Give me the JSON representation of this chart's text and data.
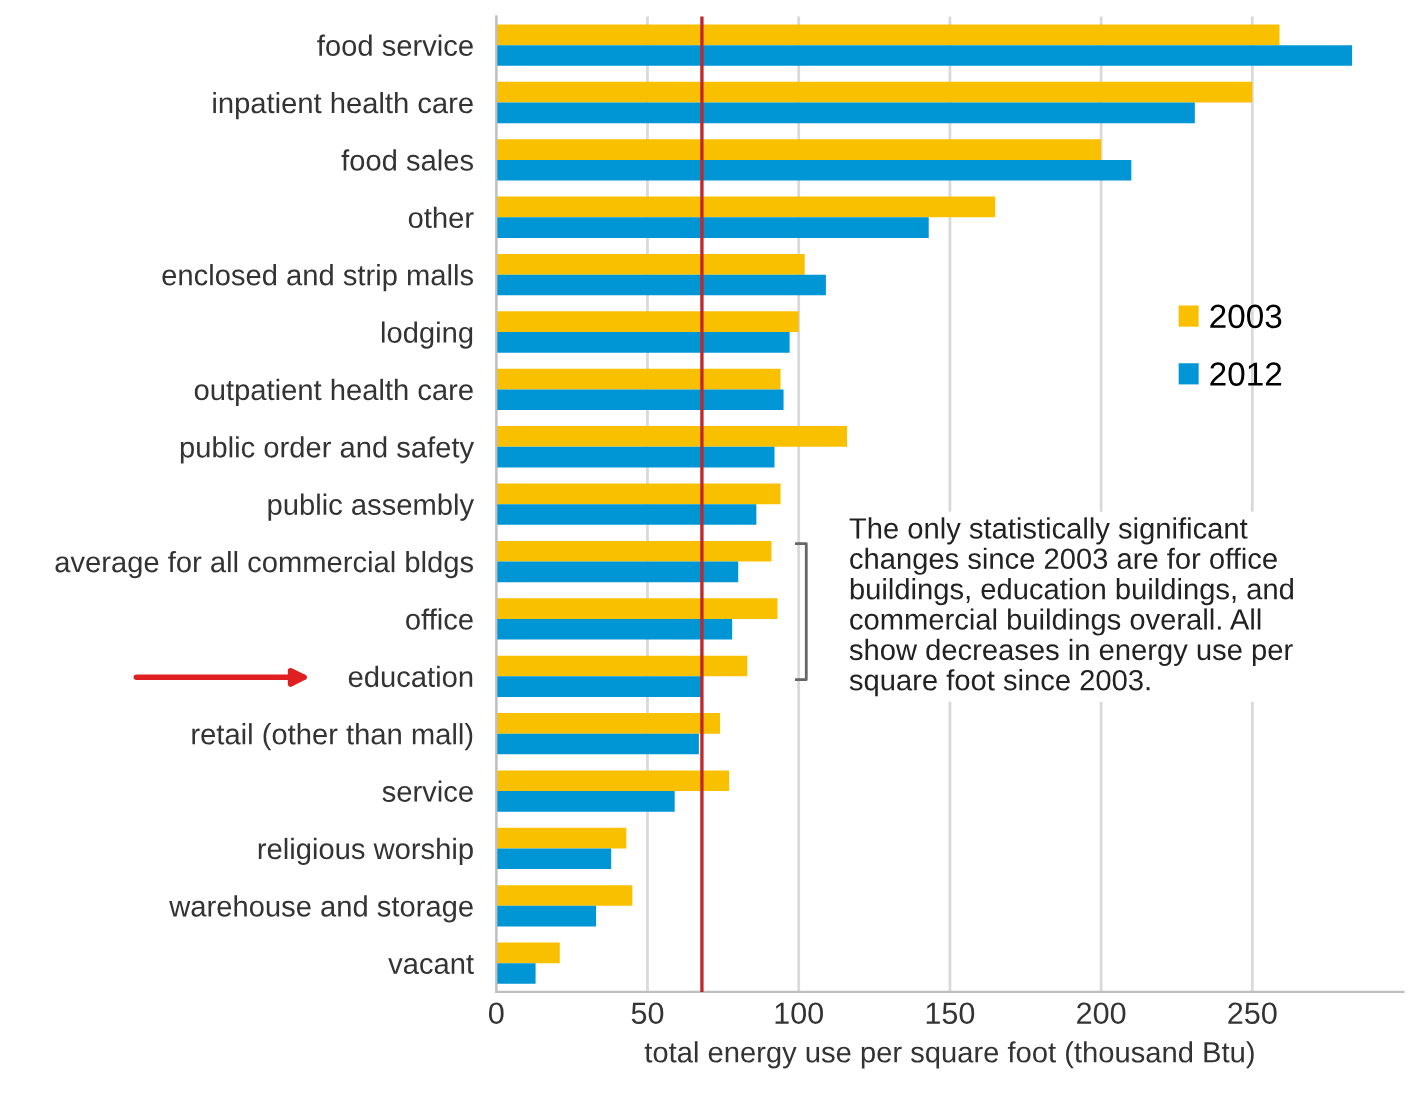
{
  "chart_data": {
    "type": "bar",
    "orientation": "horizontal",
    "xlabel": "total energy use per square foot (thousand Btu)",
    "categories": [
      "food service",
      "inpatient health care",
      "food sales",
      "other",
      "enclosed and strip malls",
      "lodging",
      "outpatient health care",
      "public order and safety",
      "public assembly",
      "average for all commercial bldgs",
      "office",
      "education",
      "retail (other than mall)",
      "service",
      "religious worship",
      "warehouse and storage",
      "vacant"
    ],
    "series": [
      {
        "name": "2003",
        "color": "#f9c000",
        "values": [
          259,
          250,
          200,
          165,
          102,
          100,
          94,
          116,
          94,
          91,
          93,
          83,
          74,
          77,
          43,
          45,
          21
        ]
      },
      {
        "name": "2012",
        "color": "#0096d6",
        "values": [
          283,
          231,
          210,
          143,
          109,
          97,
          95,
          92,
          86,
          80,
          78,
          68,
          67,
          59,
          38,
          33,
          13
        ]
      }
    ],
    "xlim": [
      0,
      300
    ],
    "xticks": [
      0,
      50,
      100,
      150,
      200,
      250
    ],
    "grid": "x",
    "legend": "right",
    "ref_lines": [
      {
        "axis": "x",
        "value": 68,
        "color": "#c0272d"
      }
    ],
    "annotations": [
      "The only statistically significant\nchanges since 2003 are for office\nbuildings, education buildings, and\ncommercial buildings overall. All\nshow decreases in energy use per\nsquare foot since 2003."
    ]
  }
}
